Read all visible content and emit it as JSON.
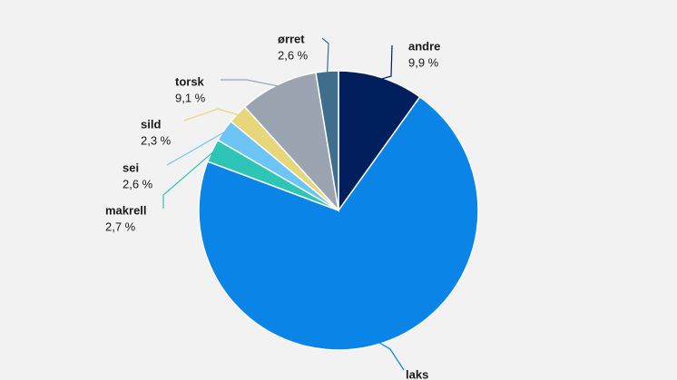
{
  "chart_data": {
    "type": "pie",
    "categories": [
      "andre",
      "laks",
      "makrell",
      "sei",
      "sild",
      "torsk",
      "ørret"
    ],
    "values": [
      9.9,
      70.8,
      2.7,
      2.6,
      2.3,
      9.1,
      2.6
    ],
    "value_labels": [
      "9,9 %",
      null,
      "2,7 %",
      "2,6 %",
      "2,3 %",
      "9,1 %",
      "2,6 %"
    ],
    "colors": [
      "#001f5c",
      "#0a84e6",
      "#2ec4b6",
      "#6cc5f5",
      "#e8d77a",
      "#9aa5b1",
      "#3f6e8c"
    ]
  }
}
